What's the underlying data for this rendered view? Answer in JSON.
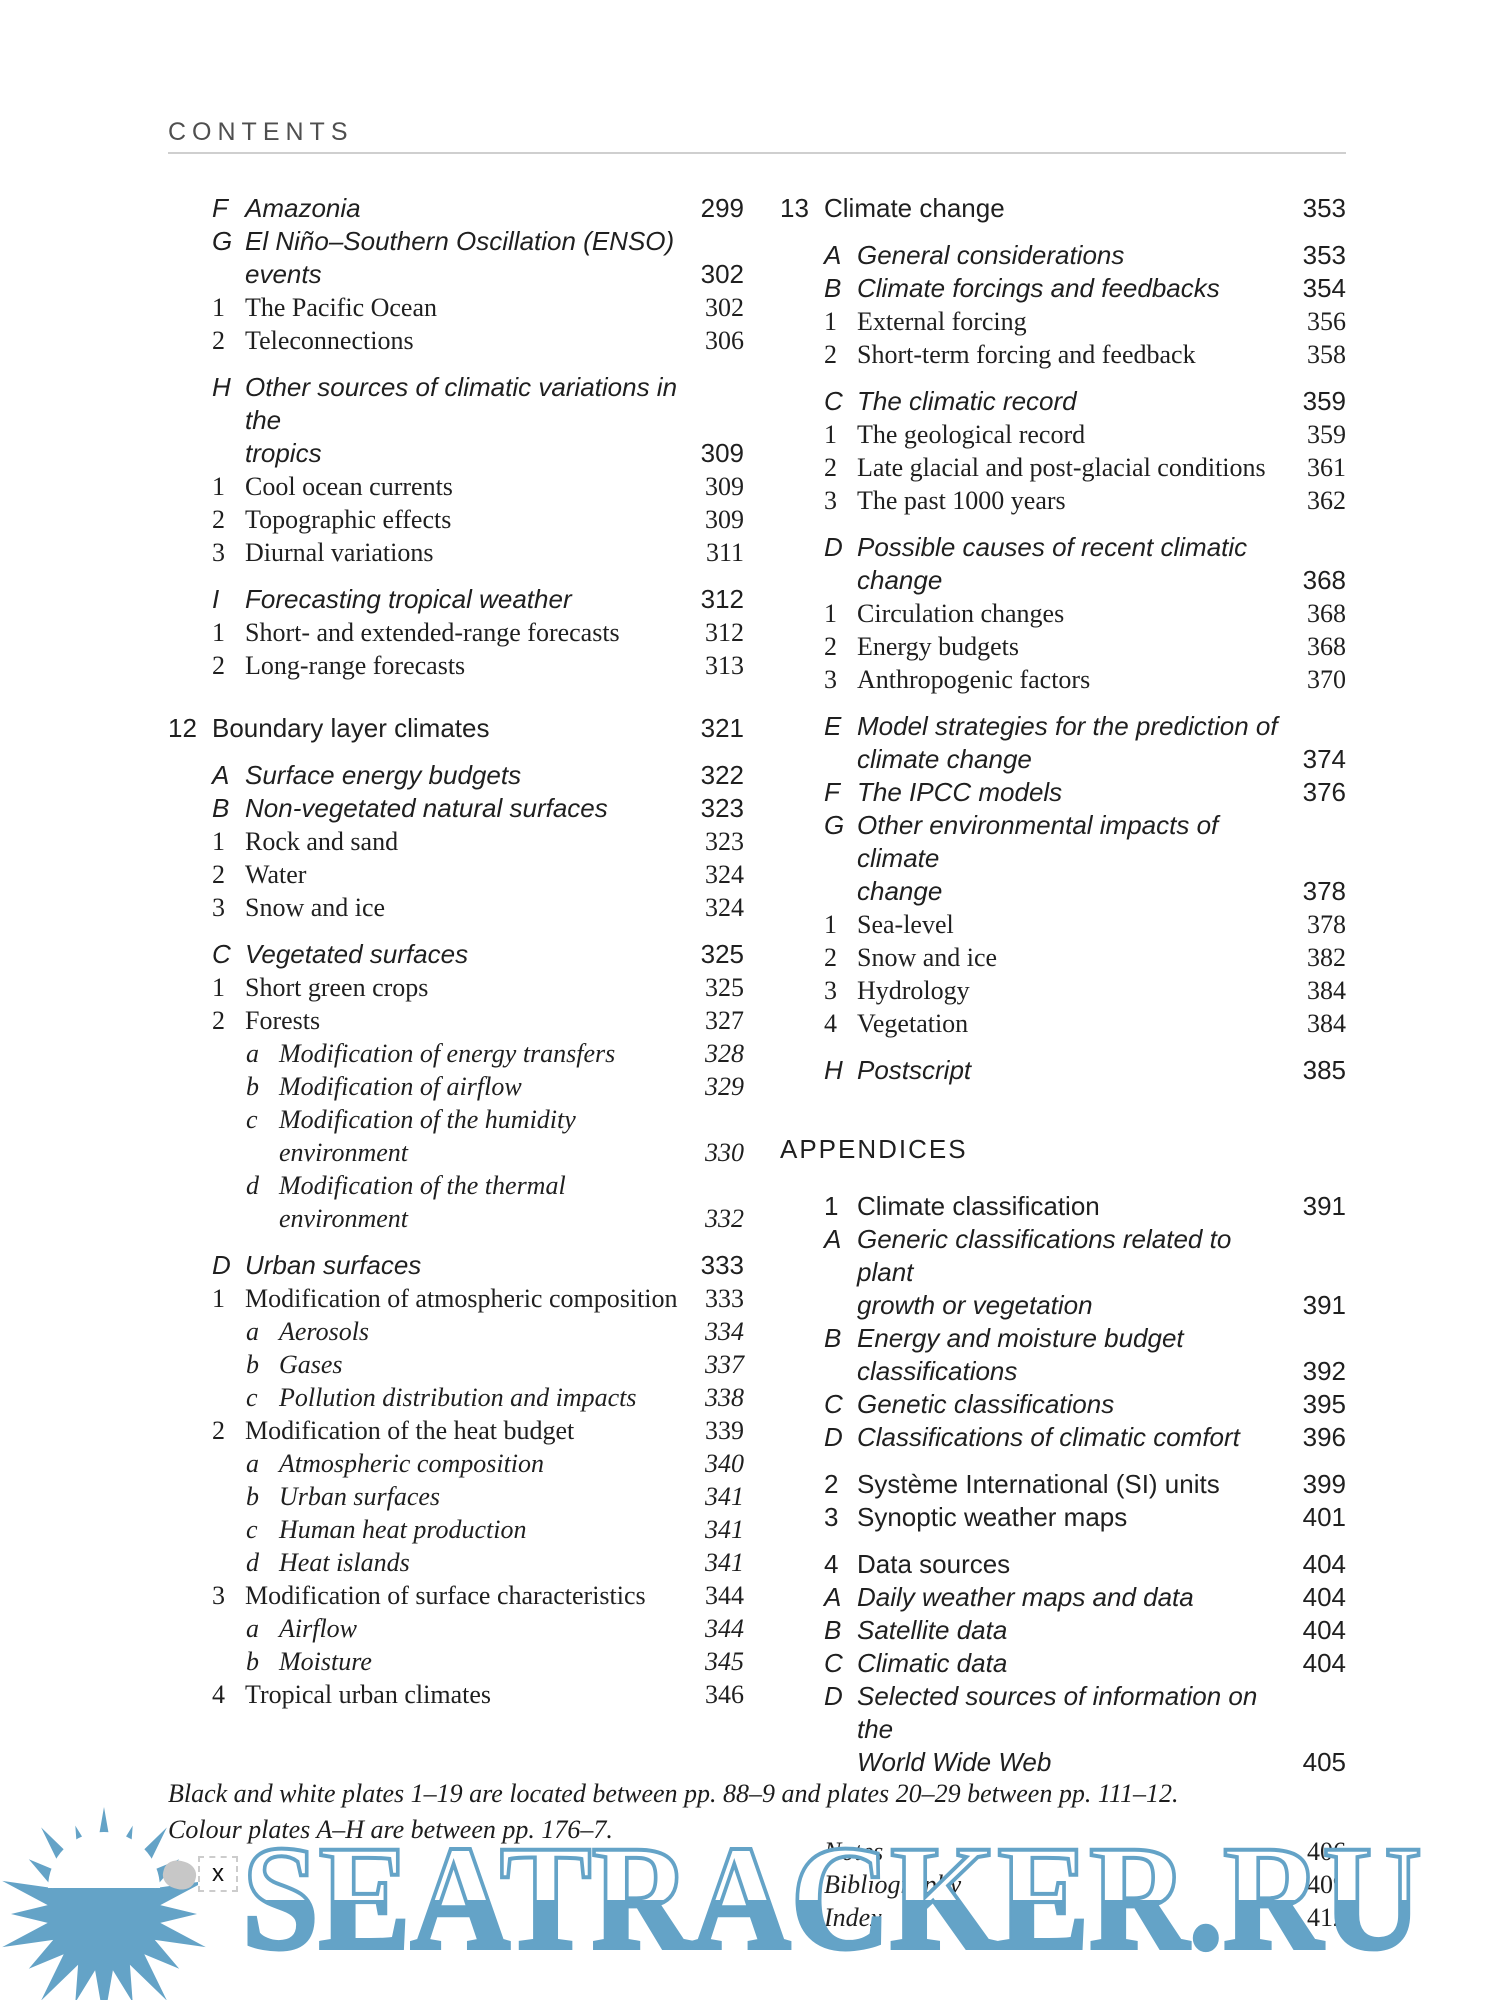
{
  "header": {
    "title": "CONTENTS"
  },
  "columns": [
    {
      "entries": [
        {
          "label": "F",
          "title": "Amazonia",
          "page": "299",
          "style": "sec"
        },
        {
          "label": "G",
          "title": "El Niño–Southern Oscillation (ENSO)\nevents",
          "page": "302",
          "style": "sec"
        },
        {
          "label": "1",
          "title": "The Pacific Ocean",
          "page": "302",
          "style": "sub"
        },
        {
          "label": "2",
          "title": "Teleconnections",
          "page": "306",
          "style": "sub"
        },
        {
          "label": "H",
          "title": "Other sources of climatic variations in the\ntropics",
          "page": "309",
          "style": "sec",
          "gap": "sm"
        },
        {
          "label": "1",
          "title": "Cool ocean currents",
          "page": "309",
          "style": "sub"
        },
        {
          "label": "2",
          "title": "Topographic effects",
          "page": "309",
          "style": "sub"
        },
        {
          "label": "3",
          "title": "Diurnal variations",
          "page": "311",
          "style": "sub"
        },
        {
          "label": "I",
          "title": "Forecasting tropical weather",
          "page": "312",
          "style": "sec",
          "gap": "sm"
        },
        {
          "label": "1",
          "title": "Short- and extended-range forecasts",
          "page": "312",
          "style": "sub"
        },
        {
          "label": "2",
          "title": "Long-range forecasts",
          "page": "313",
          "style": "sub"
        },
        {
          "label": "12",
          "title": "Boundary layer climates",
          "page": "321",
          "style": "ch",
          "gap": "lg"
        },
        {
          "label": "A",
          "title": "Surface energy budgets",
          "page": "322",
          "style": "sec",
          "gap": "sm"
        },
        {
          "label": "B",
          "title": "Non-vegetated natural surfaces",
          "page": "323",
          "style": "sec"
        },
        {
          "label": "1",
          "title": "Rock and sand",
          "page": "323",
          "style": "sub"
        },
        {
          "label": "2",
          "title": "Water",
          "page": "324",
          "style": "sub"
        },
        {
          "label": "3",
          "title": "Snow and ice",
          "page": "324",
          "style": "sub"
        },
        {
          "label": "C",
          "title": "Vegetated surfaces",
          "page": "325",
          "style": "sec",
          "gap": "sm"
        },
        {
          "label": "1",
          "title": "Short green crops",
          "page": "325",
          "style": "sub"
        },
        {
          "label": "2",
          "title": "Forests",
          "page": "327",
          "style": "sub"
        },
        {
          "label": "a",
          "title": "Modification of energy transfers",
          "page": "328",
          "style": "ssub"
        },
        {
          "label": "b",
          "title": "Modification of airflow",
          "page": "329",
          "style": "ssub"
        },
        {
          "label": "c",
          "title": "Modification of the humidity\nenvironment",
          "page": "330",
          "style": "ssub"
        },
        {
          "label": "d",
          "title": "Modification of the thermal\nenvironment",
          "page": "332",
          "style": "ssub"
        },
        {
          "label": "D",
          "title": "Urban surfaces",
          "page": "333",
          "style": "sec",
          "gap": "sm"
        },
        {
          "label": "1",
          "title": "Modification of atmospheric composition",
          "page": "333",
          "style": "sub"
        },
        {
          "label": "a",
          "title": "Aerosols",
          "page": "334",
          "style": "ssub"
        },
        {
          "label": "b",
          "title": "Gases",
          "page": "337",
          "style": "ssub"
        },
        {
          "label": "c",
          "title": "Pollution distribution and impacts",
          "page": "338",
          "style": "ssub"
        },
        {
          "label": "2",
          "title": "Modification of the heat budget",
          "page": "339",
          "style": "sub"
        },
        {
          "label": "a",
          "title": "Atmospheric composition",
          "page": "340",
          "style": "ssub"
        },
        {
          "label": "b",
          "title": "Urban surfaces",
          "page": "341",
          "style": "ssub"
        },
        {
          "label": "c",
          "title": "Human heat production",
          "page": "341",
          "style": "ssub"
        },
        {
          "label": "d",
          "title": "Heat islands",
          "page": "341",
          "style": "ssub"
        },
        {
          "label": "3",
          "title": "Modification of surface characteristics",
          "page": "344",
          "style": "sub"
        },
        {
          "label": "a",
          "title": "Airflow",
          "page": "344",
          "style": "ssub"
        },
        {
          "label": "b",
          "title": "Moisture",
          "page": "345",
          "style": "ssub"
        },
        {
          "label": "4",
          "title": "Tropical urban climates",
          "page": "346",
          "style": "sub"
        }
      ]
    },
    {
      "entries": [
        {
          "label": "13",
          "title": "Climate change",
          "page": "353",
          "style": "ch"
        },
        {
          "label": "A",
          "title": "General considerations",
          "page": "353",
          "style": "sec",
          "gap": "sm"
        },
        {
          "label": "B",
          "title": "Climate forcings and feedbacks",
          "page": "354",
          "style": "sec"
        },
        {
          "label": "1",
          "title": "External forcing",
          "page": "356",
          "style": "sub"
        },
        {
          "label": "2",
          "title": "Short-term forcing and feedback",
          "page": "358",
          "style": "sub"
        },
        {
          "label": "C",
          "title": "The climatic record",
          "page": "359",
          "style": "sec",
          "gap": "sm"
        },
        {
          "label": "1",
          "title": "The geological record",
          "page": "359",
          "style": "sub"
        },
        {
          "label": "2",
          "title": "Late glacial and post-glacial conditions",
          "page": "361",
          "style": "sub"
        },
        {
          "label": "3",
          "title": "The past 1000 years",
          "page": "362",
          "style": "sub"
        },
        {
          "label": "D",
          "title": "Possible causes of recent climatic change",
          "page": "368",
          "style": "sec",
          "gap": "sm"
        },
        {
          "label": "1",
          "title": "Circulation changes",
          "page": "368",
          "style": "sub"
        },
        {
          "label": "2",
          "title": "Energy budgets",
          "page": "368",
          "style": "sub"
        },
        {
          "label": "3",
          "title": "Anthropogenic factors",
          "page": "370",
          "style": "sub"
        },
        {
          "label": "E",
          "title": "Model strategies for the prediction of\nclimate change",
          "page": "374",
          "style": "sec",
          "gap": "sm"
        },
        {
          "label": "F",
          "title": "The IPCC models",
          "page": "376",
          "style": "sec"
        },
        {
          "label": "G",
          "title": "Other environmental impacts of climate\nchange",
          "page": "378",
          "style": "sec"
        },
        {
          "label": "1",
          "title": "Sea-level",
          "page": "378",
          "style": "sub"
        },
        {
          "label": "2",
          "title": "Snow and ice",
          "page": "382",
          "style": "sub"
        },
        {
          "label": "3",
          "title": "Hydrology",
          "page": "384",
          "style": "sub"
        },
        {
          "label": "4",
          "title": "Vegetation",
          "page": "384",
          "style": "sub"
        },
        {
          "label": "H",
          "title": "Postscript",
          "page": "385",
          "style": "sec",
          "gap": "sm"
        },
        {
          "title": "APPENDICES",
          "style": "head",
          "gap": "xl"
        },
        {
          "label": "1",
          "title": "Climate classification",
          "page": "391",
          "style": "app",
          "gap": "md"
        },
        {
          "label": "A",
          "title": "Generic classifications related to plant\ngrowth or vegetation",
          "page": "391",
          "style": "sec"
        },
        {
          "label": "B",
          "title": "Energy and moisture budget classifications",
          "page": "392",
          "style": "sec"
        },
        {
          "label": "C",
          "title": "Genetic classifications",
          "page": "395",
          "style": "sec"
        },
        {
          "label": "D",
          "title": "Classifications of climatic comfort",
          "page": "396",
          "style": "sec"
        },
        {
          "label": "2",
          "title": "Système International (SI) units",
          "page": "399",
          "style": "app",
          "gap": "sm"
        },
        {
          "label": "3",
          "title": "Synoptic weather maps",
          "page": "401",
          "style": "app"
        },
        {
          "label": "4",
          "title": "Data sources",
          "page": "404",
          "style": "app",
          "gap": "sm"
        },
        {
          "label": "A",
          "title": "Daily weather maps and data",
          "page": "404",
          "style": "sec"
        },
        {
          "label": "B",
          "title": "Satellite data",
          "page": "404",
          "style": "sec"
        },
        {
          "label": "C",
          "title": "Climatic data",
          "page": "404",
          "style": "sec"
        },
        {
          "label": "D",
          "title": "Selected sources of information on the\nWorld Wide Web",
          "page": "405",
          "style": "sec"
        },
        {
          "title": "Notes",
          "page": "406",
          "style": "back",
          "gap": "xxl"
        },
        {
          "title": "Bibliography",
          "page": "409",
          "style": "back"
        },
        {
          "title": "Index",
          "page": "412",
          "style": "back"
        }
      ]
    }
  ],
  "footnote": {
    "line1": "Black and white plates 1–19 are located between pp. 88–9 and plates 20–29 between pp. 111–12.",
    "line2": "Colour plates A–H are between pp. 176–7."
  },
  "page_marker": "x",
  "watermark": {
    "text": "SEATRACKER.RU",
    "blue": "#64A3C7"
  }
}
